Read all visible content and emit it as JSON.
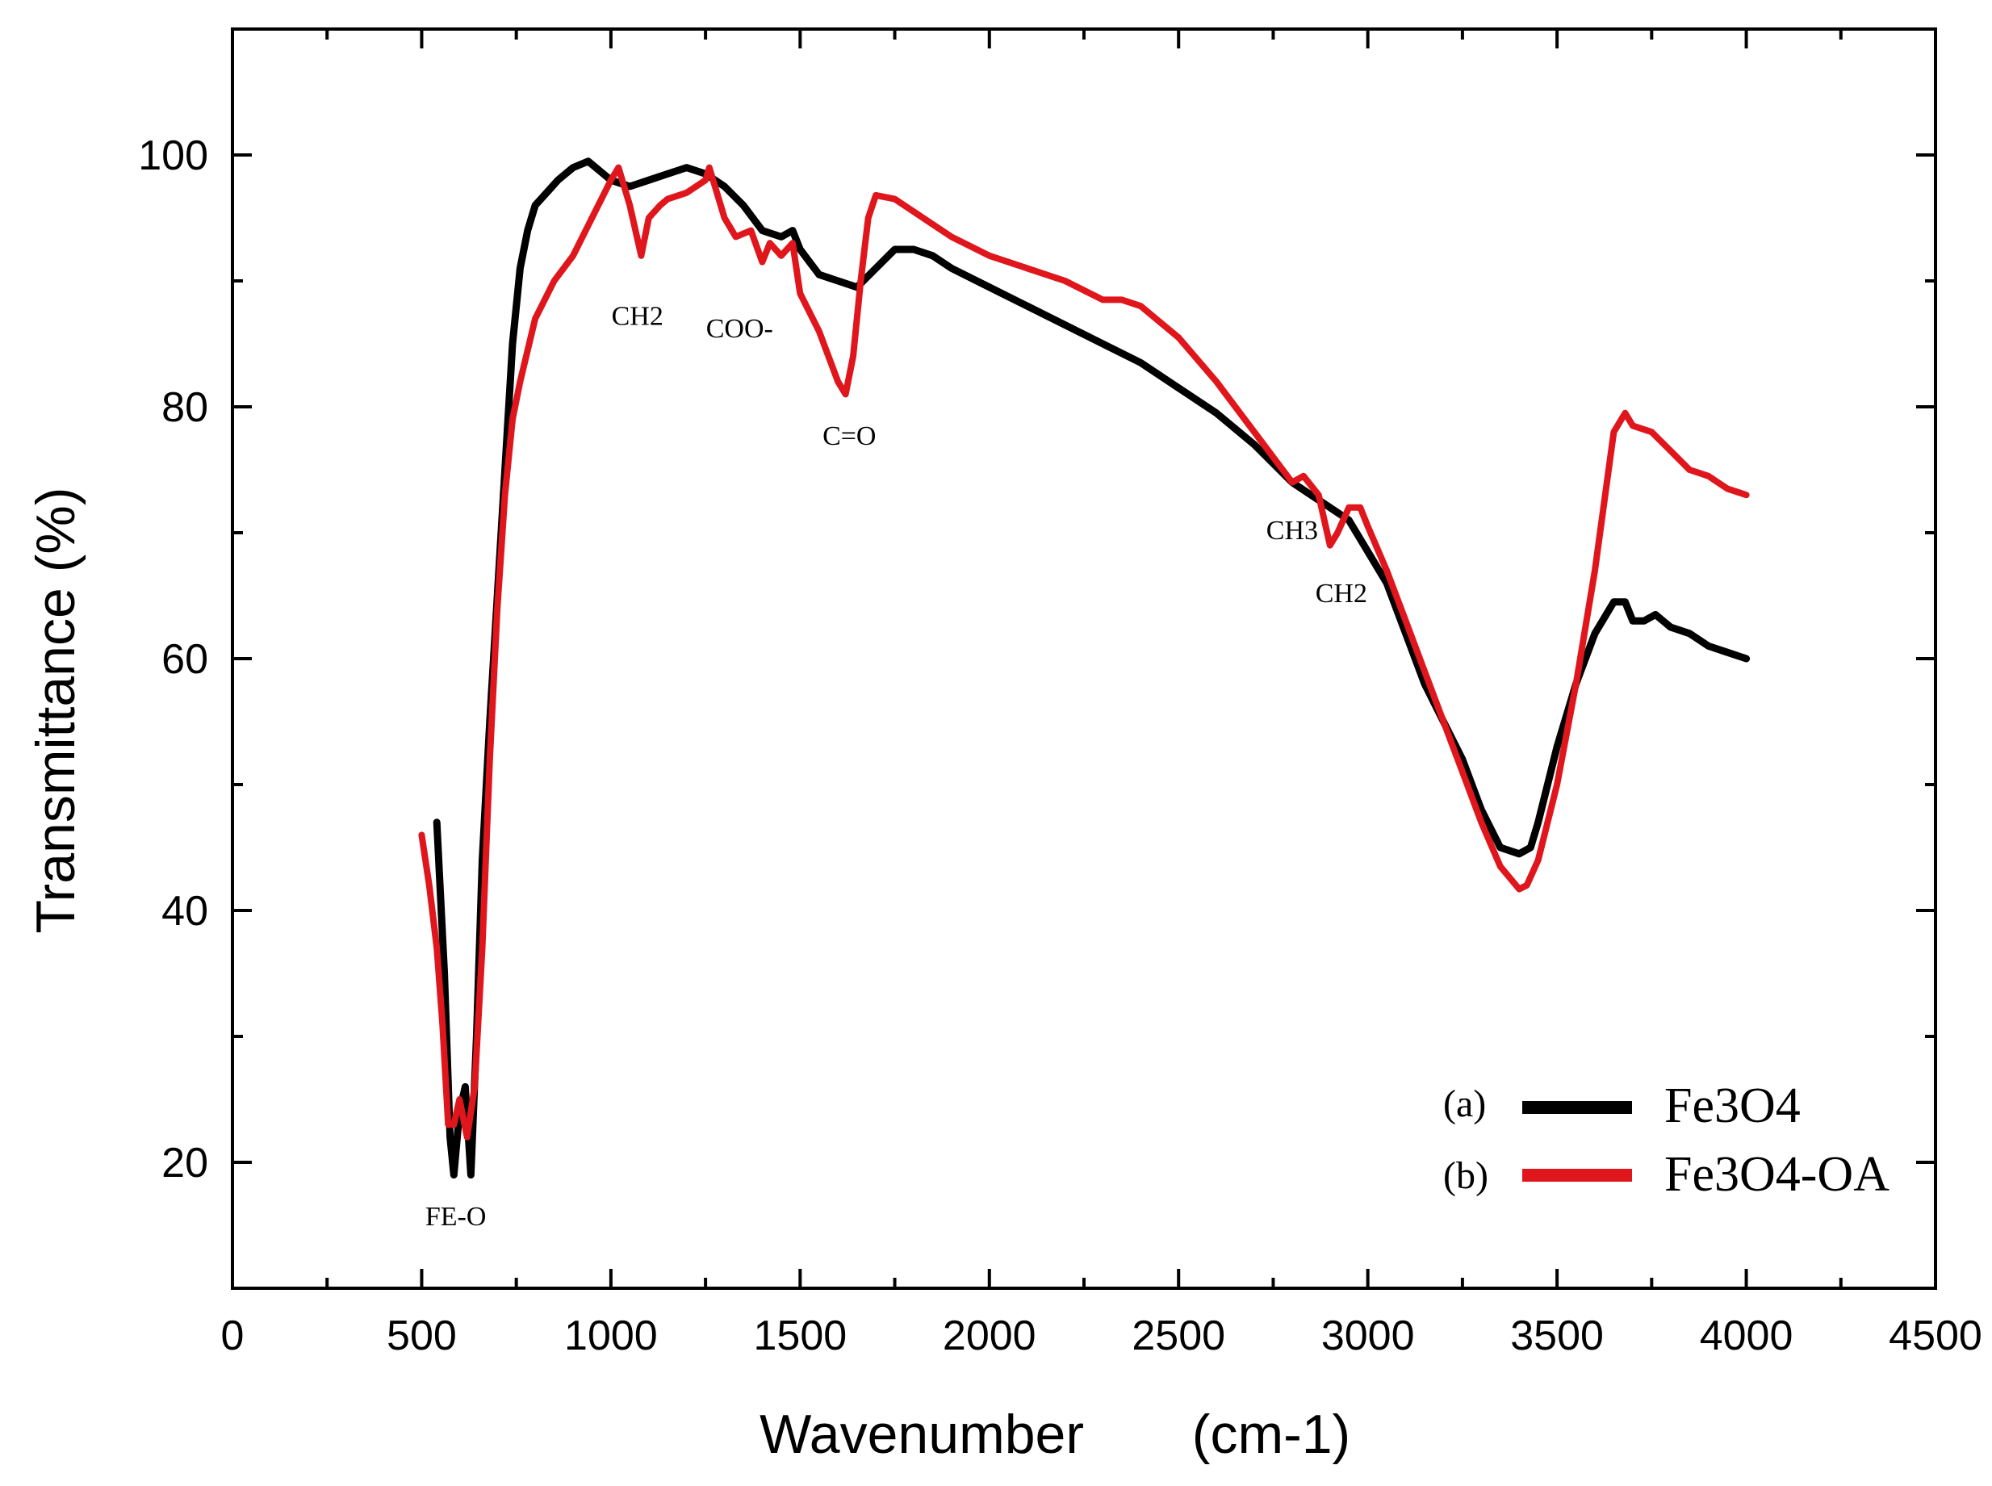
{
  "chart_data": {
    "type": "line",
    "title": "",
    "xlabel": "Wavenumber",
    "xlabel_unit": "(cm-1)",
    "ylabel": "Transmittance (%)",
    "xlim": [
      0,
      4500
    ],
    "ylim": [
      10,
      110
    ],
    "xticks": [
      0,
      500,
      1000,
      1500,
      2000,
      2500,
      3000,
      3500,
      4000,
      4500
    ],
    "yticks": [
      20,
      40,
      60,
      80,
      100
    ],
    "grid": false,
    "legend_position": "bottom-right",
    "series": [
      {
        "tag": "(a)",
        "name": "Fe3O4",
        "color": "#000000",
        "x": [
          540,
          560,
          575,
          585,
          600,
          615,
          630,
          645,
          660,
          680,
          700,
          720,
          740,
          760,
          780,
          800,
          830,
          860,
          900,
          940,
          960,
          1000,
          1050,
          1100,
          1150,
          1200,
          1250,
          1300,
          1350,
          1400,
          1450,
          1480,
          1500,
          1550,
          1600,
          1650,
          1700,
          1750,
          1800,
          1850,
          1900,
          2000,
          2100,
          2200,
          2300,
          2400,
          2500,
          2600,
          2700,
          2800,
          2850,
          2900,
          2950,
          3000,
          3050,
          3100,
          3150,
          3200,
          3250,
          3300,
          3350,
          3400,
          3430,
          3450,
          3500,
          3550,
          3600,
          3650,
          3680,
          3700,
          3730,
          3760,
          3780,
          3800,
          3850,
          3900,
          3950,
          4000
        ],
        "y": [
          47,
          35,
          22,
          19,
          24,
          26,
          19,
          30,
          44,
          55,
          65,
          75,
          85,
          91,
          94,
          96,
          97,
          98,
          99,
          99.5,
          99,
          98,
          97.5,
          98,
          98.5,
          99,
          98.5,
          97.5,
          96,
          94,
          93.5,
          94,
          92.5,
          90.5,
          90,
          89.5,
          91,
          92.5,
          92.5,
          92,
          91,
          89.5,
          88,
          86.5,
          85,
          83.5,
          81.5,
          79.5,
          77,
          74,
          73,
          72,
          71,
          68.5,
          66,
          62,
          58,
          55,
          52,
          48,
          45,
          44.5,
          45,
          47,
          53,
          58,
          62,
          64.5,
          64.5,
          63,
          63,
          63.5,
          63,
          62.5,
          62,
          61,
          60.5,
          60
        ]
      },
      {
        "tag": "(b)",
        "name": "Fe3O4-OA",
        "color": "#e0161d",
        "x": [
          500,
          520,
          540,
          555,
          570,
          585,
          600,
          620,
          640,
          660,
          680,
          700,
          720,
          740,
          760,
          800,
          850,
          900,
          950,
          1000,
          1020,
          1050,
          1080,
          1100,
          1130,
          1150,
          1200,
          1250,
          1260,
          1300,
          1330,
          1370,
          1400,
          1420,
          1450,
          1480,
          1500,
          1550,
          1600,
          1620,
          1640,
          1660,
          1680,
          1700,
          1750,
          1800,
          1900,
          2000,
          2100,
          2200,
          2300,
          2350,
          2400,
          2500,
          2600,
          2700,
          2800,
          2830,
          2870,
          2900,
          2920,
          2950,
          2980,
          3000,
          3050,
          3100,
          3150,
          3200,
          3250,
          3300,
          3350,
          3400,
          3420,
          3450,
          3500,
          3550,
          3600,
          3650,
          3680,
          3700,
          3750,
          3800,
          3850,
          3900,
          3950,
          4000
        ],
        "y": [
          46,
          42,
          37,
          31,
          23,
          23,
          25,
          22,
          26,
          37,
          52,
          64,
          73,
          79,
          82,
          87,
          90,
          92,
          95,
          98,
          99,
          96,
          92,
          95,
          96,
          96.5,
          97,
          98,
          99,
          95,
          93.5,
          94,
          91.5,
          93,
          92,
          93,
          89,
          86,
          82,
          81,
          84,
          90,
          95,
          96.8,
          96.5,
          95.5,
          93.5,
          92,
          91,
          90,
          88.5,
          88.5,
          88,
          85.5,
          82,
          78,
          74,
          74.5,
          73,
          69,
          70,
          72,
          72,
          70.5,
          67,
          63,
          59,
          55,
          51,
          47,
          43.5,
          41.7,
          42,
          44,
          50,
          58,
          67,
          78,
          79.5,
          78.5,
          78,
          76.5,
          75,
          74.5,
          73.5,
          73
        ]
      }
    ],
    "annotations": [
      {
        "text": "FE-O",
        "x": 590,
        "y": 15
      },
      {
        "text": "CH2",
        "x": 1070,
        "y": 86.5
      },
      {
        "text": "COO-",
        "x": 1340,
        "y": 85.5
      },
      {
        "text": "C=O",
        "x": 1630,
        "y": 77
      },
      {
        "text": "CH3",
        "x": 2800,
        "y": 69.5
      },
      {
        "text": "CH2",
        "x": 2930,
        "y": 64.5
      }
    ]
  }
}
